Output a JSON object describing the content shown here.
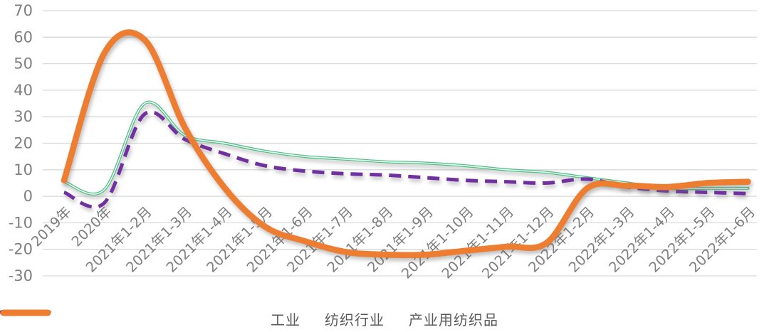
{
  "chart_data": {
    "type": "line",
    "title": "",
    "xlabel": "",
    "ylabel": "",
    "ylim": [
      -30,
      70
    ],
    "yticks": [
      70,
      60,
      50,
      40,
      30,
      20,
      10,
      0,
      -10,
      -20,
      -30
    ],
    "grid": "horizontal",
    "legend_position": "bottom",
    "categories": [
      "2019年",
      "2020年",
      "2021年1-2月",
      "2021年1-3月",
      "2021年1-4月",
      "2021年1-5月",
      "2021年1-6月",
      "2021年1-7月",
      "2021年1-8月",
      "2021年1-9月",
      "2021年1-10月",
      "2021年1-11月",
      "2021年1-12月",
      "2022年1-2月",
      "2022年1-3月",
      "2022年1-4月",
      "2022年1-5月",
      "2022年1-6月"
    ],
    "series": [
      {
        "id": "industry",
        "name": "工业",
        "color": "#4cbe86",
        "style": "thin-double",
        "values": [
          5.5,
          2.5,
          35,
          23,
          20,
          17,
          15,
          14,
          13,
          12.5,
          11.5,
          10,
          9,
          7,
          5,
          3,
          3,
          3
        ]
      },
      {
        "id": "textile-industry",
        "name": "纺织行业",
        "color": "#7030a0",
        "style": "dashed",
        "values": [
          1.5,
          -2.5,
          31,
          21.5,
          16,
          11.5,
          9.5,
          8.5,
          8,
          7,
          6,
          5.5,
          5,
          6.5,
          3.5,
          2,
          1.5,
          1
        ]
      },
      {
        "id": "industrial-textiles",
        "name": "产业用纺织品",
        "color": "#ed7d31",
        "style": "thick",
        "values": [
          6,
          54,
          59,
          26,
          3,
          -11.5,
          -17,
          -21,
          -22,
          -22,
          -20.5,
          -19,
          -17.5,
          3,
          4,
          3.5,
          5,
          5.5
        ]
      }
    ]
  },
  "colors": {
    "gridline": "#d9d9d9",
    "axis_text": "#7f7f7f",
    "legend_text": "#595959"
  }
}
